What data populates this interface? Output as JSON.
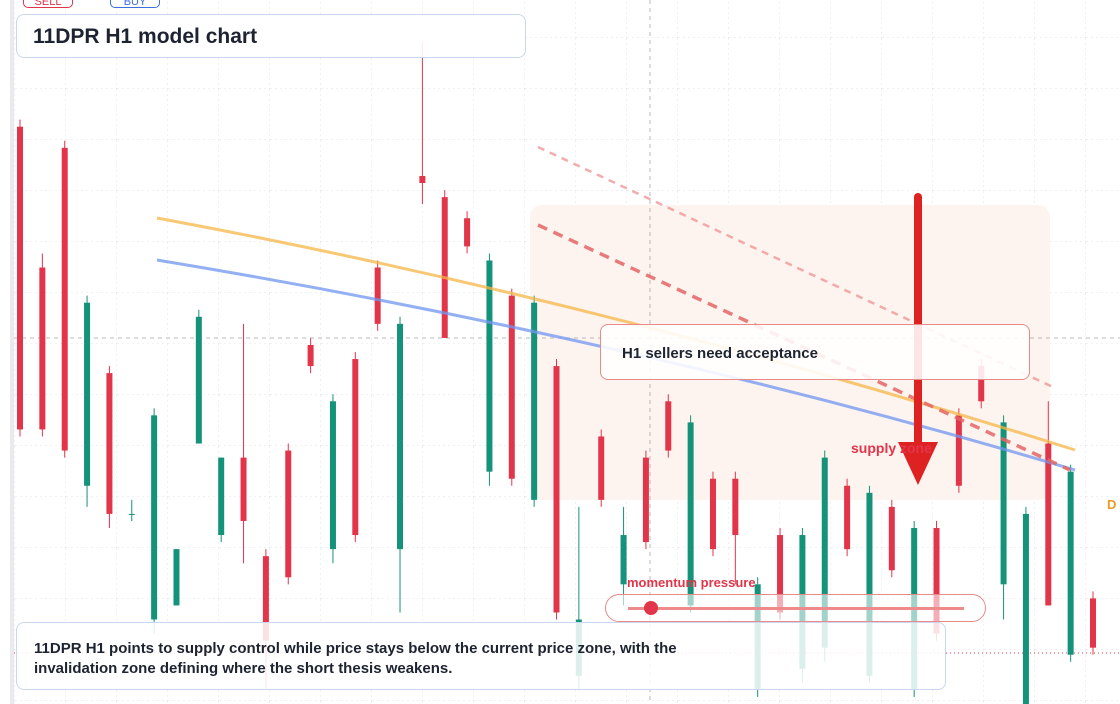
{
  "buttons": {
    "sell": "SELL",
    "buy": "BUY"
  },
  "chart_data": {
    "type": "candlestick",
    "title": "11DPR H1 model chart",
    "annotation": "H1 sellers need acceptance",
    "zone_label": "supply zone",
    "momentum_label": "momentum pressure",
    "edge_label": "D",
    "caption": "11DPR H1 points to supply control while price stays below the current price zone, with the invalidation zone defining where the short thesis weakens.",
    "up_color": "#15927a",
    "down_color": "#e2354a",
    "ylim": [
      0,
      100
    ],
    "open": [
      82,
      62,
      79,
      31,
      47,
      27,
      12,
      14,
      37,
      24,
      35,
      21,
      36,
      51,
      22,
      49,
      62,
      22,
      75,
      72,
      69,
      33,
      58,
      29,
      48,
      4,
      38,
      17,
      35,
      43,
      14,
      32,
      32,
      2,
      24,
      5,
      8,
      31,
      4,
      28,
      2,
      25,
      41,
      48,
      17,
      0,
      37,
      7,
      15
    ],
    "high": [
      83,
      64,
      80,
      58,
      48,
      29,
      42,
      22,
      56,
      35,
      54,
      22,
      37,
      52,
      44,
      50,
      63,
      55,
      94,
      73,
      70,
      64,
      59,
      58,
      49,
      28,
      39,
      28,
      36,
      44,
      41,
      33,
      33,
      18,
      25,
      25,
      36,
      32,
      31,
      29,
      26,
      26,
      42,
      49,
      41,
      28,
      43,
      34,
      16
    ],
    "low": [
      38,
      38,
      35,
      28,
      25,
      26,
      10,
      14,
      37,
      23,
      20,
      2,
      17,
      47,
      20,
      23,
      53,
      13,
      71,
      52,
      64,
      31,
      31,
      28,
      12,
      2,
      28,
      14,
      22,
      35,
      13,
      21,
      17,
      1,
      12,
      3,
      6,
      21,
      3,
      18,
      1,
      9,
      30,
      42,
      12,
      0,
      14,
      6,
      7
    ],
    "close": [
      39,
      39,
      36,
      57,
      27,
      27,
      41,
      22,
      55,
      35,
      26,
      9,
      18,
      48,
      43,
      24,
      54,
      54,
      74,
      52,
      65,
      63,
      32,
      57,
      13,
      12,
      29,
      24,
      23,
      36,
      40,
      22,
      24,
      17,
      13,
      24,
      35,
      22,
      30,
      19,
      25,
      10,
      31,
      43,
      40,
      27,
      14,
      33,
      8
    ]
  }
}
